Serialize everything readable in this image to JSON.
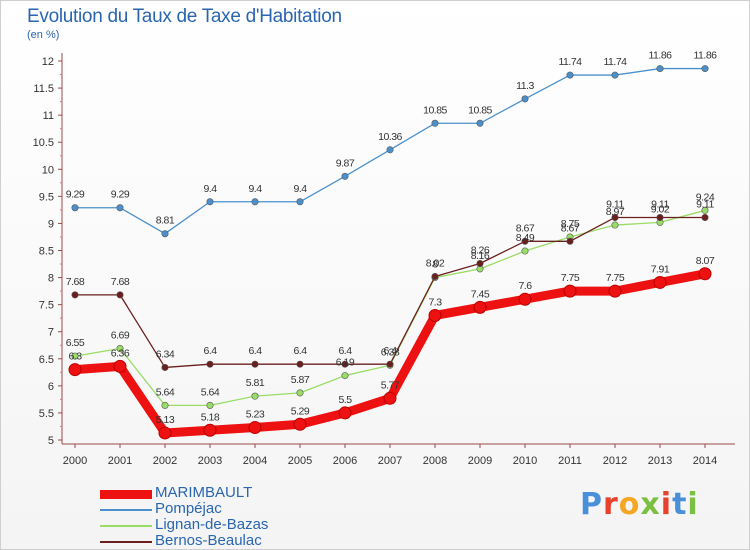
{
  "header": {
    "title": "Evolution du Taux de Taxe d'Habitation",
    "unit": "(en %)"
  },
  "logo": {
    "text": "Proxiti",
    "colors": [
      "#4a90d9",
      "#e8412c",
      "#f5a623",
      "#7bc043",
      "#e8412c",
      "#4a90d9",
      "#7bc043"
    ]
  },
  "chart_data": {
    "type": "line",
    "title": "Evolution du Taux de Taxe d'Habitation",
    "ylabel": "(en %)",
    "xlabel": "",
    "x": [
      "2000",
      "2001",
      "2002",
      "2003",
      "2004",
      "2005",
      "2006",
      "2007",
      "2008",
      "2009",
      "2010",
      "2011",
      "2012",
      "2013",
      "2014"
    ],
    "ylim": [
      5,
      12
    ],
    "yticks": [
      "5",
      "5.5",
      "6",
      "6.5",
      "7",
      "7.5",
      "8",
      "8.5",
      "9",
      "9.5",
      "10",
      "10.5",
      "11",
      "11.5",
      "12"
    ],
    "grid": false,
    "legend_position": "bottom-left",
    "series": [
      {
        "name": "MARIMBAULT",
        "color": "#ee1111",
        "values": [
          6.3,
          6.36,
          5.13,
          5.18,
          5.23,
          5.29,
          5.5,
          5.77,
          7.3,
          7.45,
          7.6,
          7.75,
          7.75,
          7.91,
          8.07
        ],
        "labels": [
          "6.3",
          "6.36",
          "5.13",
          "5.18",
          "5.23",
          "5.29",
          "5.5",
          "5.77",
          "7.3",
          "7.45",
          "7.6",
          "7.75",
          "7.75",
          "7.91",
          "8.07"
        ]
      },
      {
        "name": "Pompéjac",
        "color": "#4b90cc",
        "values": [
          9.29,
          9.29,
          8.81,
          9.4,
          9.4,
          9.4,
          9.87,
          10.36,
          10.85,
          10.85,
          11.3,
          11.74,
          11.74,
          11.86,
          11.86
        ],
        "labels": [
          "9.29",
          "9.29",
          "8.81",
          "9.4",
          "9.4",
          "9.4",
          "9.87",
          "10.36",
          "10.85",
          "10.85",
          "11.3",
          "11.74",
          "11.74",
          "11.86",
          "11.86"
        ]
      },
      {
        "name": "Lignan-de-Bazas",
        "color": "#99dd66",
        "values": [
          6.55,
          6.69,
          5.64,
          5.64,
          5.81,
          5.87,
          6.19,
          6.38,
          8.0,
          8.16,
          8.49,
          8.75,
          8.97,
          9.02,
          9.24
        ],
        "labels": [
          "6.55",
          "6.69",
          "5.64",
          "5.64",
          "5.81",
          "5.87",
          "6.19",
          "6.38",
          "8",
          "8.16",
          "8.49",
          "8.75",
          "8.97",
          "9.02",
          "9.24"
        ]
      },
      {
        "name": "Bernos-Beaulac",
        "color": "#6b1f1f",
        "values": [
          7.68,
          7.68,
          6.34,
          6.4,
          6.4,
          6.4,
          6.4,
          6.4,
          8.02,
          8.26,
          8.67,
          8.67,
          9.11,
          9.11,
          9.11
        ],
        "labels": [
          "7.68",
          "7.68",
          "6.34",
          "6.4",
          "6.4",
          "6.4",
          "6.4",
          "6.4",
          "8.02",
          "8.26",
          "8.67",
          "8.67",
          "9.11",
          "9.11",
          "9.11"
        ]
      }
    ]
  }
}
